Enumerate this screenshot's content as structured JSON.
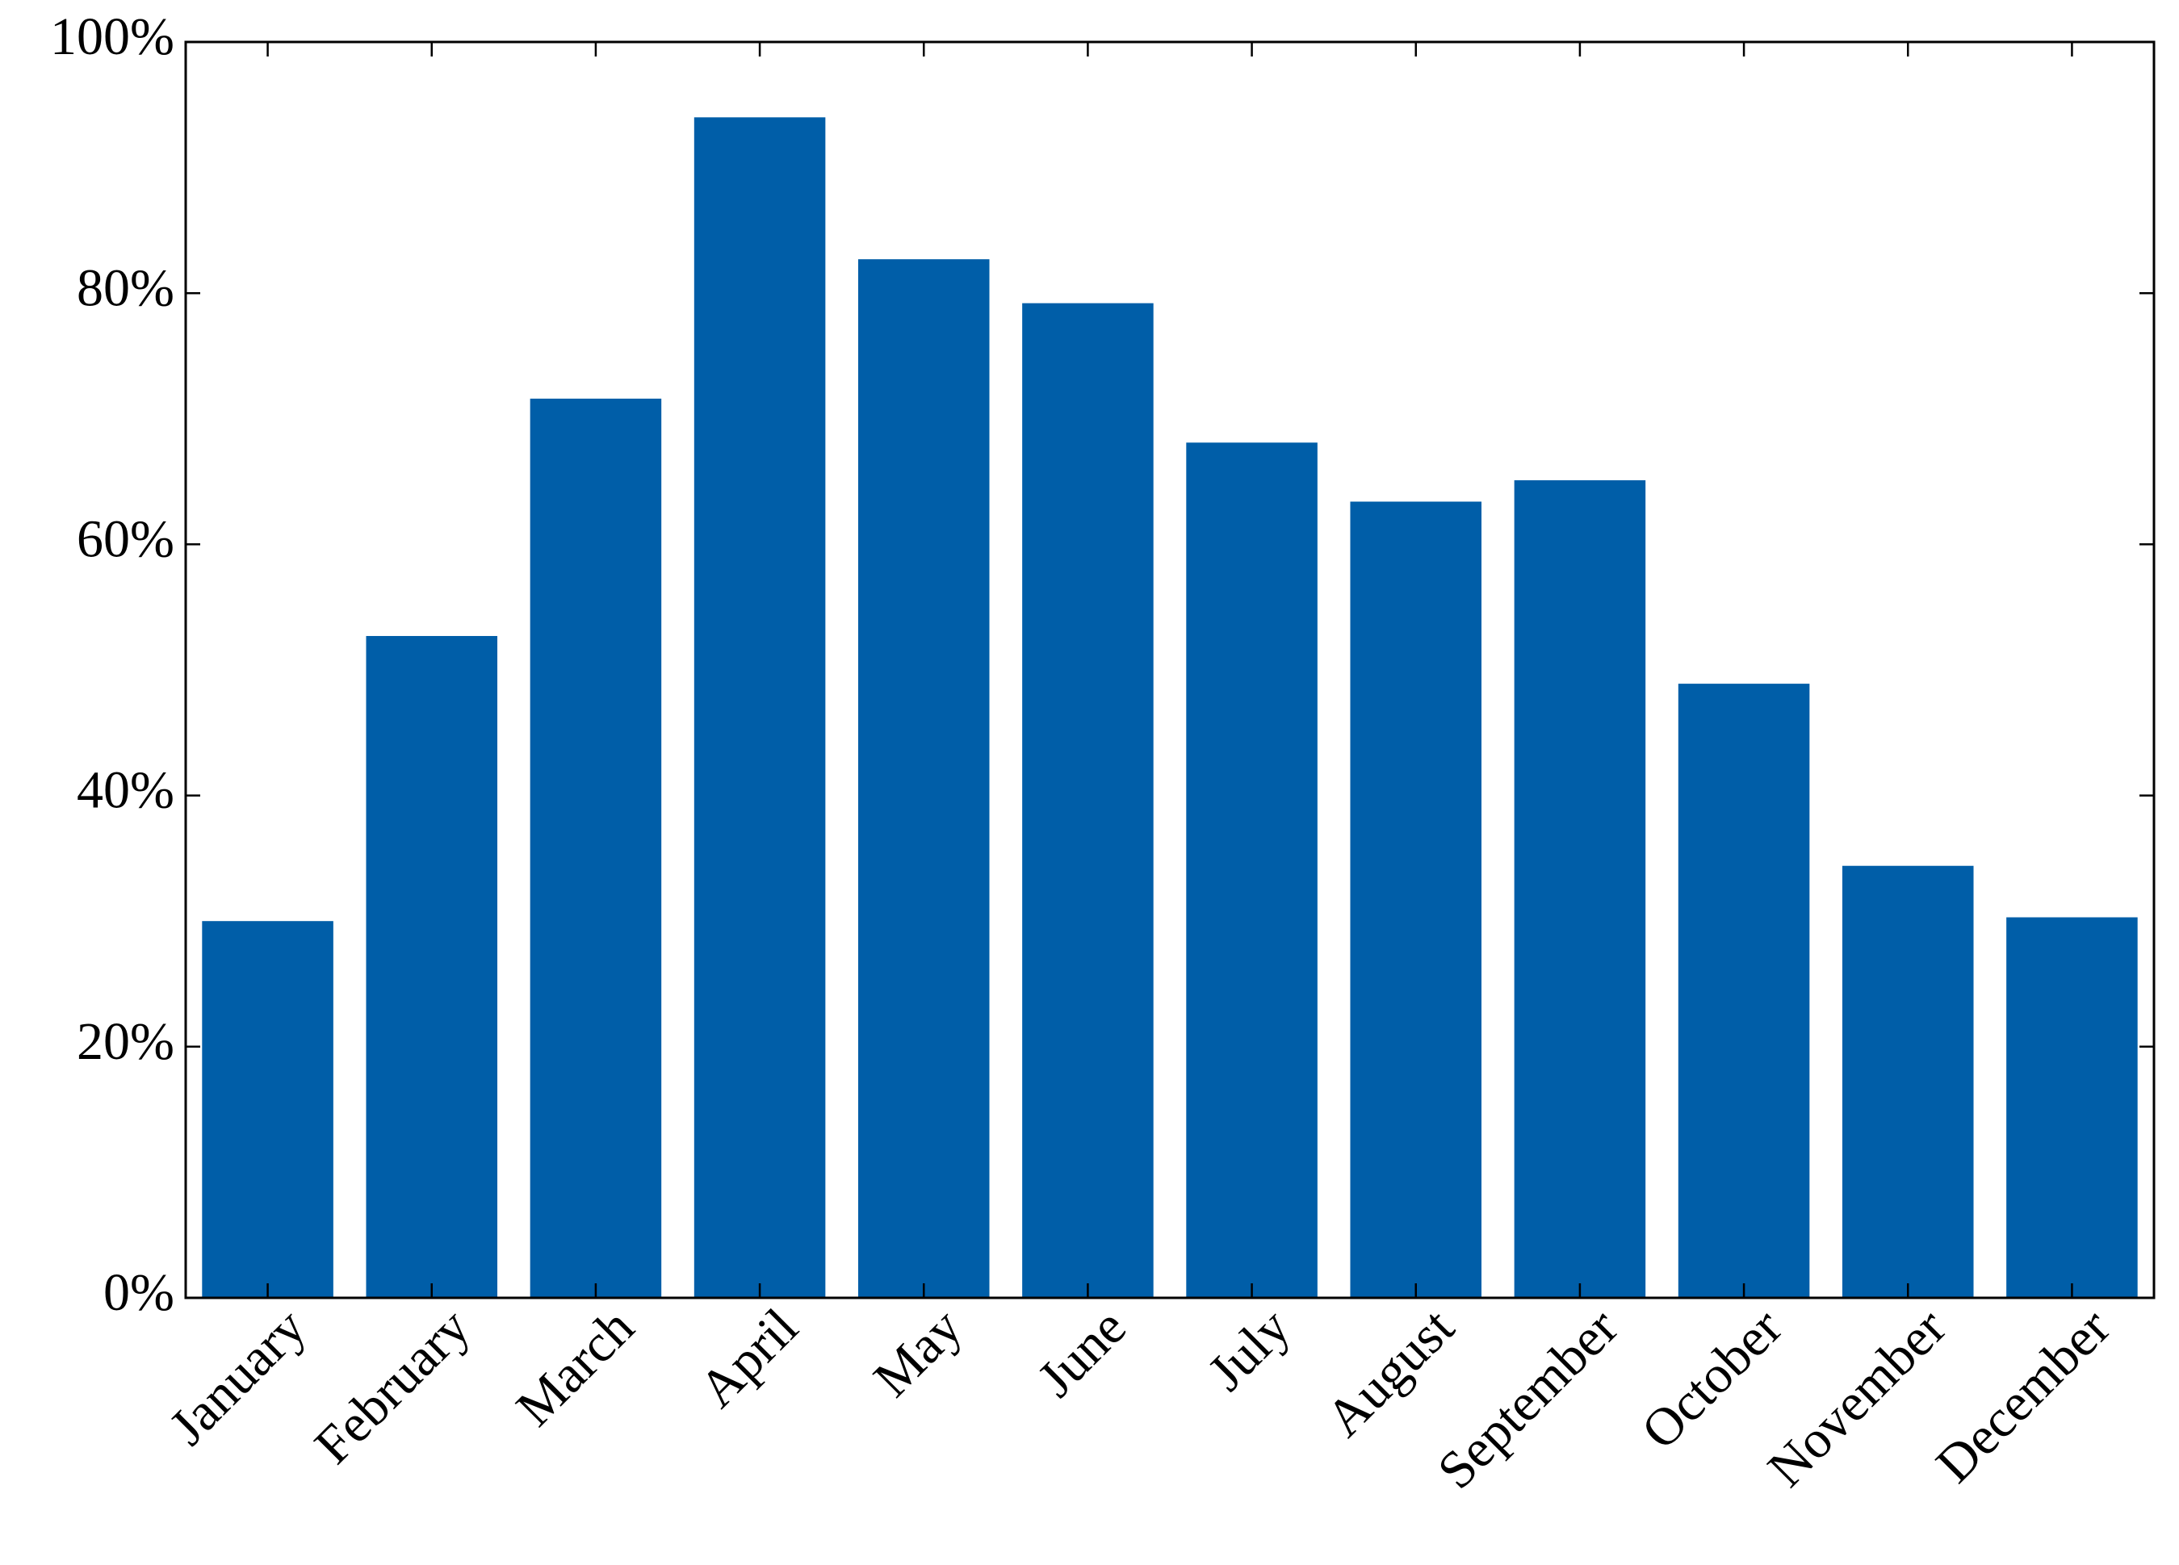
{
  "chart_data": {
    "type": "bar",
    "categories": [
      "January",
      "February",
      "March",
      "April",
      "May",
      "June",
      "July",
      "August",
      "September",
      "October",
      "November",
      "December"
    ],
    "values": [
      30,
      52.7,
      71.6,
      94.0,
      82.7,
      79.2,
      68.1,
      63.4,
      65.1,
      48.9,
      34.4,
      30.3
    ],
    "color": "#005ea8",
    "ylim": [
      0,
      100
    ],
    "yticks": [
      {
        "value": 0,
        "label": "0%"
      },
      {
        "value": 20,
        "label": "20%"
      },
      {
        "value": 40,
        "label": "40%"
      },
      {
        "value": 60,
        "label": "60%"
      },
      {
        "value": 80,
        "label": "80%"
      },
      {
        "value": 100,
        "label": "100%"
      }
    ],
    "grid": false
  }
}
